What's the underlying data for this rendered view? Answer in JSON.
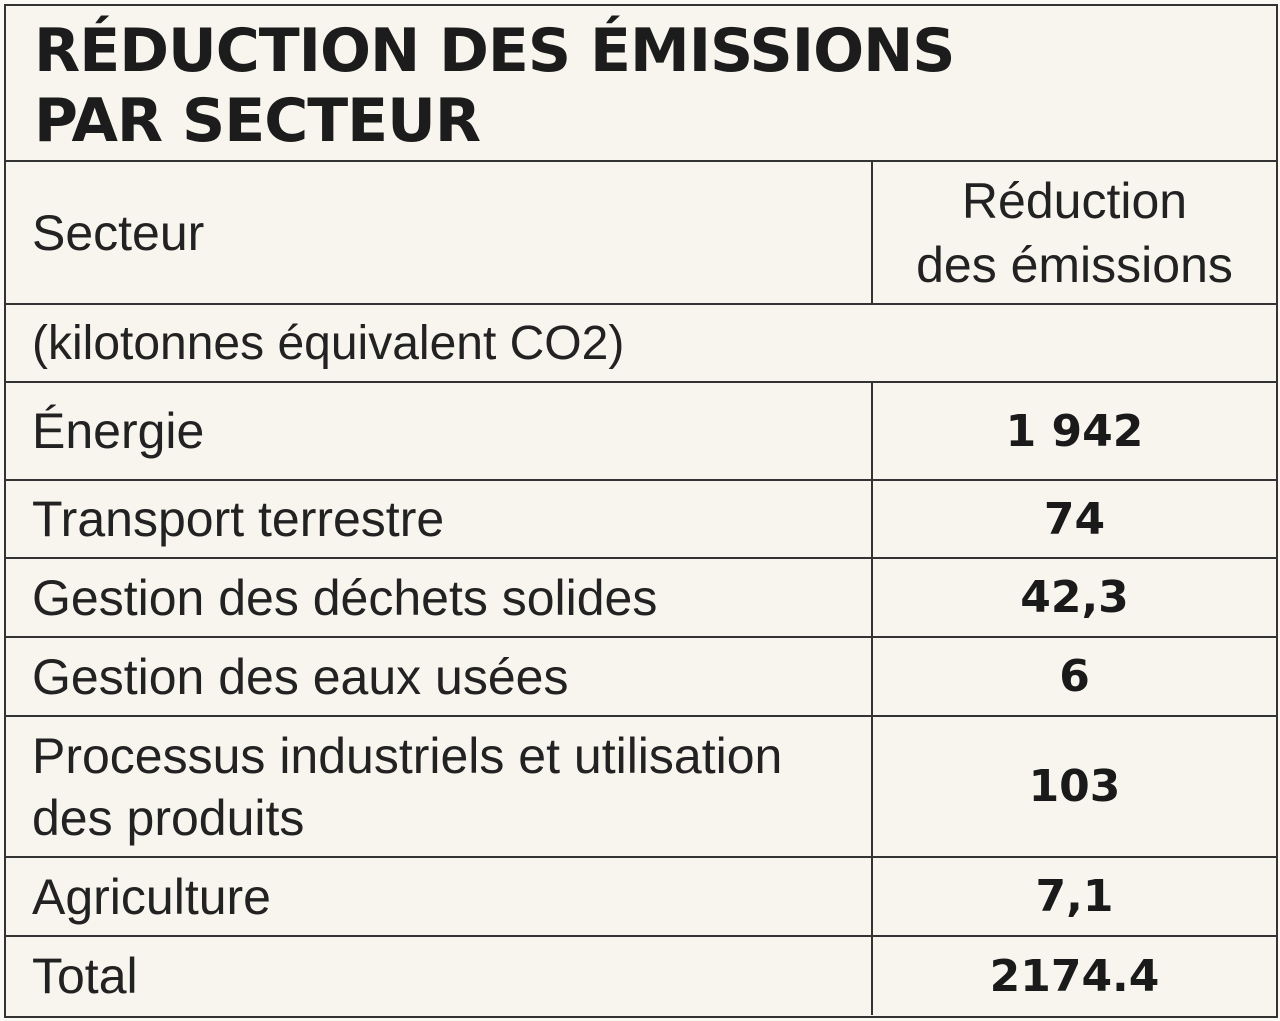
{
  "header": {
    "title_lines": [
      "RÉDUCTION DES ÉMISSIONS",
      "PAR SECTEUR"
    ]
  },
  "table": {
    "columns": [
      [
        "Secteur"
      ],
      [
        "Réduction",
        "des émissions"
      ]
    ],
    "units": "(kilotonnes  équivalent CO2)",
    "rows": [
      [
        "Énergie",
        "1 942"
      ],
      [
        "Transport terrestre",
        "74"
      ],
      [
        "Gestion des déchets solides",
        "42,3"
      ],
      [
        "Gestion des eaux usées",
        "6"
      ],
      [
        "Processus industriels et utilisation des produits",
        "103"
      ],
      [
        "Agriculture",
        "7,1"
      ],
      [
        "Total",
        "2174.4"
      ]
    ]
  }
}
